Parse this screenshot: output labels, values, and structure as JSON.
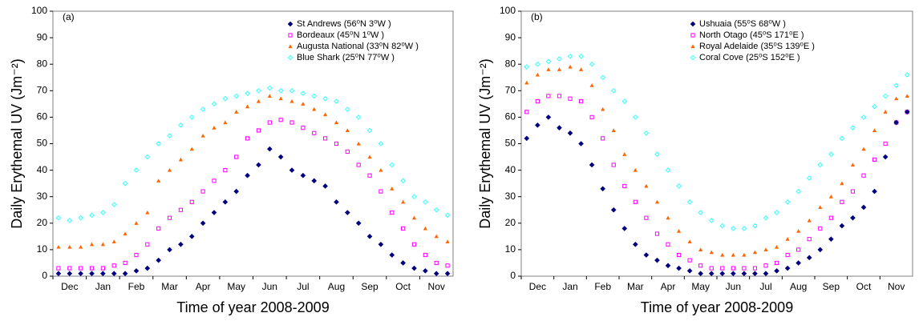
{
  "chart_data": [
    {
      "type": "scatter",
      "panel_label": "(a)",
      "categories": [
        null,
        "Dec",
        null,
        null,
        "Jan",
        null,
        null,
        "Feb",
        null,
        null,
        "Mar",
        null,
        null,
        "Apr",
        null,
        null,
        "May",
        null,
        null,
        "Jun",
        null,
        null,
        "Jul",
        null,
        null,
        "Aug",
        null,
        null,
        "Sep",
        null,
        null,
        "Oct",
        null,
        null,
        "Nov",
        null
      ],
      "xlabel": "Time of year 2008-2009",
      "ylabel": "Daily Erythemal UV (Jm⁻²)",
      "ylim": [
        0,
        100
      ],
      "yticks": [
        0,
        10,
        20,
        30,
        40,
        50,
        60,
        70,
        80,
        90,
        100
      ],
      "series": [
        {
          "name": "St Andrews (56⁰N 3⁰W )",
          "color": "#000080",
          "marker": "diamond",
          "values": [
            1,
            1,
            1,
            1,
            1,
            1,
            1,
            2,
            3,
            6,
            10,
            12,
            15,
            20,
            24,
            28,
            32,
            38,
            42,
            48,
            45,
            40,
            38,
            36,
            34,
            28,
            24,
            20,
            15,
            12,
            8,
            5,
            3,
            2,
            1,
            1
          ]
        },
        {
          "name": "Bordeaux  (45⁰N 1⁰W )",
          "color": "#ff00ff",
          "marker": "square-open",
          "values": [
            3,
            3,
            3,
            3,
            3,
            4,
            5,
            8,
            12,
            18,
            22,
            25,
            28,
            32,
            36,
            40,
            45,
            52,
            55,
            58,
            59,
            58,
            56,
            54,
            52,
            50,
            47,
            42,
            38,
            32,
            24,
            18,
            12,
            8,
            5,
            4
          ]
        },
        {
          "name": "Augusta National  (33⁰N 82⁰W  )",
          "color": "#ff6600",
          "marker": "triangle",
          "values": [
            11,
            11,
            11,
            12,
            12,
            13,
            16,
            20,
            24,
            36,
            40,
            44,
            48,
            53,
            56,
            58,
            62,
            64,
            66,
            68,
            67,
            66,
            65,
            63,
            61,
            58,
            55,
            50,
            45,
            40,
            33,
            28,
            22,
            18,
            15,
            13
          ]
        },
        {
          "name": "Blue Shark   (25⁰N 77⁰W )",
          "color": "#33ffff",
          "marker": "diamond-open",
          "values": [
            22,
            21,
            22,
            23,
            24,
            27,
            35,
            40,
            45,
            50,
            53,
            57,
            60,
            63,
            65,
            67,
            68,
            69,
            70,
            71,
            70,
            70,
            69,
            68,
            67,
            66,
            63,
            60,
            55,
            50,
            42,
            36,
            30,
            28,
            25,
            23
          ]
        }
      ]
    },
    {
      "type": "scatter",
      "panel_label": "(b)",
      "categories": [
        null,
        "Dec",
        null,
        null,
        "Jan",
        null,
        null,
        "Feb",
        null,
        null,
        "Mar",
        null,
        null,
        "Apr",
        null,
        null,
        "May",
        null,
        null,
        "Jun",
        null,
        null,
        "Jul",
        null,
        null,
        "Aug",
        null,
        null,
        "Sep",
        null,
        null,
        "Oct",
        null,
        null,
        "Nov",
        null
      ],
      "xlabel": "Time of year 2008-2009",
      "ylabel": "Daily Erythemal UV (Jm⁻²)",
      "ylim": [
        0,
        100
      ],
      "yticks": [
        0,
        10,
        20,
        30,
        40,
        50,
        60,
        70,
        80,
        90,
        100
      ],
      "series": [
        {
          "name": "Ushuaia  (55⁰S 68⁰W )",
          "color": "#000080",
          "marker": "diamond",
          "values": [
            52,
            57,
            60,
            56,
            54,
            50,
            42,
            33,
            25,
            18,
            12,
            8,
            6,
            4,
            3,
            2,
            1,
            1,
            1,
            1,
            1,
            1,
            1,
            2,
            3,
            5,
            7,
            10,
            14,
            19,
            22,
            26,
            32,
            45,
            58,
            62
          ]
        },
        {
          "name": "North Otago  (45⁰S 171⁰E )",
          "color": "#ff00ff",
          "marker": "square-open",
          "values": [
            62,
            66,
            68,
            68,
            67,
            66,
            60,
            52,
            42,
            34,
            28,
            22,
            16,
            12,
            8,
            6,
            4,
            3,
            3,
            3,
            3,
            3,
            4,
            5,
            8,
            10,
            14,
            18,
            22,
            28,
            32,
            38,
            44,
            50,
            58,
            62
          ]
        },
        {
          "name": "Royal Adelaide  (35⁰S 139⁰E )",
          "color": "#ff6600",
          "marker": "triangle",
          "values": [
            73,
            76,
            78,
            78,
            79,
            78,
            72,
            63,
            55,
            46,
            40,
            34,
            28,
            22,
            17,
            13,
            10,
            9,
            8,
            8,
            8,
            9,
            10,
            11,
            14,
            17,
            21,
            26,
            30,
            35,
            42,
            48,
            55,
            62,
            67,
            68
          ]
        },
        {
          "name": "Coral Cove  (25⁰S 152⁰E )",
          "color": "#33ffff",
          "marker": "diamond-open",
          "values": [
            79,
            80,
            81,
            82,
            83,
            83,
            80,
            75,
            70,
            66,
            60,
            54,
            46,
            40,
            34,
            28,
            24,
            21,
            19,
            18,
            18,
            19,
            22,
            24,
            28,
            32,
            37,
            42,
            46,
            52,
            56,
            60,
            64,
            68,
            72,
            76
          ]
        }
      ]
    }
  ]
}
